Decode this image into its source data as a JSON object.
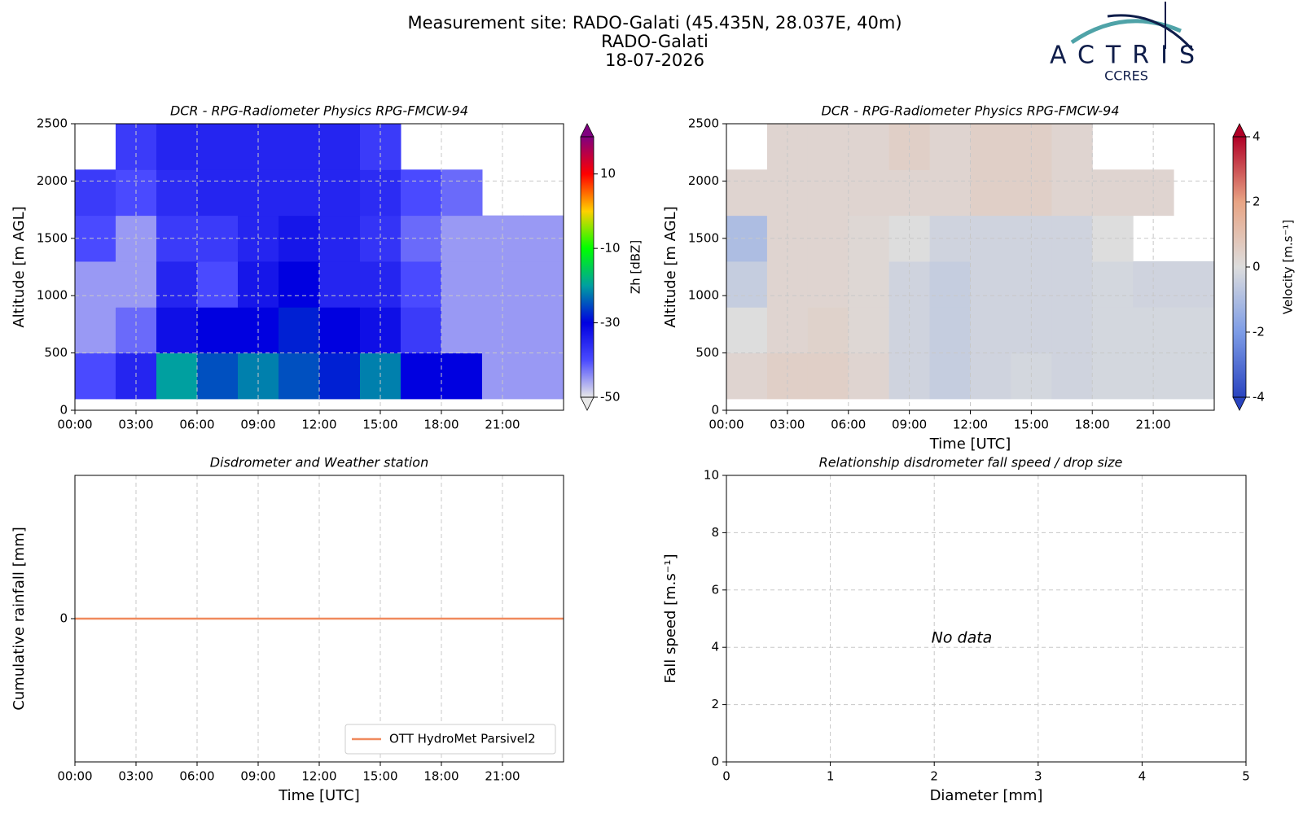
{
  "header": {
    "title": [
      "Measurement site: RADO-Galati (45.435N, 28.037E, 40m)",
      "RADO-Galati",
      "18-07-2026"
    ],
    "logo": "ACTRIS",
    "logo_subtitle": "CCRES"
  },
  "chart_data": [
    {
      "type": "heatmap",
      "title": "DCR - RPG-Radiometer Physics RPG-FMCW-94",
      "y_label": "Altitude [m AGL]",
      "colorbar_label": "Zh [dBZ]",
      "x_edges": [
        0,
        2,
        4,
        6,
        8,
        10,
        12,
        14,
        16,
        18,
        20,
        22,
        24
      ],
      "y_edges": [
        100,
        500,
        900,
        1300,
        1700,
        2100,
        2500
      ],
      "z": [
        [
          -40,
          -35,
          -20,
          -25,
          -22,
          -25,
          -28,
          -22,
          -30,
          -30,
          -45,
          -45
        ],
        [
          -45,
          -42,
          -32,
          -30,
          -30,
          -28,
          -30,
          -32,
          -38,
          -45,
          -45,
          -45
        ],
        [
          -45,
          -45,
          -35,
          -40,
          -33,
          -30,
          -35,
          -35,
          -40,
          -45,
          -45,
          -45
        ],
        [
          -40,
          -45,
          -38,
          -38,
          -35,
          -33,
          -35,
          -37,
          -42,
          -45,
          -45,
          -45
        ],
        [
          -38,
          -40,
          -36,
          -35,
          -35,
          -35,
          -35,
          -36,
          -40,
          -42,
          null,
          null
        ],
        [
          null,
          -38,
          -35,
          -35,
          -35,
          -35,
          -35,
          -38,
          null,
          null,
          null,
          null
        ]
      ],
      "clim": [
        -50,
        20
      ],
      "cticks": [
        -50,
        -30,
        -10,
        10
      ],
      "colormap": [
        "#e8e8e8",
        "#4a4aff",
        "#0000e0",
        "#00a0a0",
        "#00ff00",
        "#ffd000",
        "#ff0000",
        "#800080"
      ],
      "xlim": [
        0,
        24
      ],
      "ylim": [
        0,
        2500
      ],
      "xticks": [
        {
          "value": 0,
          "label": "00:00"
        },
        {
          "value": 3,
          "label": "03:00"
        },
        {
          "value": 6,
          "label": "06:00"
        },
        {
          "value": 9,
          "label": "09:00"
        },
        {
          "value": 12,
          "label": "12:00"
        },
        {
          "value": 15,
          "label": "15:00"
        },
        {
          "value": 18,
          "label": "18:00"
        },
        {
          "value": 21,
          "label": "21:00"
        }
      ],
      "yticks": [
        0,
        500,
        1000,
        1500,
        2000,
        2500
      ],
      "grid": true
    },
    {
      "type": "heatmap",
      "title": "DCR - RPG-Radiometer Physics RPG-FMCW-94",
      "y_label": "Altitude [m AGL]",
      "x_label": "Time [UTC]",
      "colorbar_label": "Velocity [m.s⁻¹]",
      "x_edges": [
        0,
        2,
        4,
        6,
        8,
        10,
        12,
        14,
        16,
        18,
        20,
        22,
        24
      ],
      "y_edges": [
        100,
        500,
        900,
        1300,
        1700,
        2100,
        2500
      ],
      "z": [
        [
          0.3,
          0.5,
          0.5,
          0.3,
          -0.3,
          -0.5,
          -0.3,
          -0.2,
          -0.3,
          -0.2,
          -0.2,
          -0.2
        ],
        [
          0,
          0.3,
          0.4,
          0.2,
          -0.3,
          -0.5,
          -0.3,
          -0.3,
          -0.3,
          -0.2,
          -0.2,
          -0.2
        ],
        [
          -0.5,
          0.3,
          0.3,
          0.2,
          -0.3,
          -0.5,
          -0.3,
          -0.3,
          -0.3,
          -0.2,
          -0.3,
          -0.3
        ],
        [
          -1,
          0.3,
          0.3,
          0.2,
          0,
          -0.3,
          -0.3,
          -0.3,
          -0.3,
          0,
          null,
          null
        ],
        [
          0.3,
          0.3,
          0.3,
          0.3,
          0.3,
          0.3,
          0.5,
          0.5,
          0.3,
          0.3,
          0.3,
          null
        ],
        [
          null,
          0.3,
          0.3,
          0.3,
          0.5,
          0.3,
          0.5,
          0.5,
          0.3,
          null,
          null,
          null
        ]
      ],
      "clim": [
        -4,
        4
      ],
      "cticks": [
        -4,
        -2,
        0,
        2,
        4
      ],
      "colormap": [
        "#2a44c0",
        "#7d9ce6",
        "#dddddd",
        "#e8a484",
        "#b00026"
      ],
      "xlim": [
        0,
        24
      ],
      "ylim": [
        0,
        2500
      ],
      "xticks": [
        {
          "value": 0,
          "label": "00:00"
        },
        {
          "value": 3,
          "label": "03:00"
        },
        {
          "value": 6,
          "label": "06:00"
        },
        {
          "value": 9,
          "label": "09:00"
        },
        {
          "value": 12,
          "label": "12:00"
        },
        {
          "value": 15,
          "label": "15:00"
        },
        {
          "value": 18,
          "label": "18:00"
        },
        {
          "value": 21,
          "label": "21:00"
        }
      ],
      "yticks": [
        0,
        500,
        1000,
        1500,
        2000,
        2500
      ],
      "grid": true
    },
    {
      "type": "line",
      "title": "Disdrometer and Weather station",
      "y_label": "Cumulative rainfall [mm]",
      "x_label": "Time [UTC]",
      "x": [
        0,
        24
      ],
      "series": [
        {
          "name": "OTT HydroMet Parsivel2",
          "color": "#f08a5d",
          "values": [
            0,
            0
          ]
        }
      ],
      "xlim": [
        0,
        24
      ],
      "ylim": [
        -1,
        1
      ],
      "xticks": [
        {
          "value": 0,
          "label": "00:00"
        },
        {
          "value": 3,
          "label": "03:00"
        },
        {
          "value": 6,
          "label": "06:00"
        },
        {
          "value": 9,
          "label": "09:00"
        },
        {
          "value": 12,
          "label": "12:00"
        },
        {
          "value": 15,
          "label": "15:00"
        },
        {
          "value": 18,
          "label": "18:00"
        },
        {
          "value": 21,
          "label": "21:00"
        }
      ],
      "yticks": [
        0
      ],
      "grid": true,
      "legend": "lower right"
    },
    {
      "type": "scatter",
      "title": "Relationship disdrometer fall speed / drop size",
      "y_label": "Fall speed [m.s⁻¹]",
      "x_label": "Diameter [mm]",
      "annotation": "No data",
      "xlim": [
        0,
        5
      ],
      "ylim": [
        0,
        10
      ],
      "xticks": [
        0,
        1,
        2,
        3,
        4,
        5
      ],
      "yticks": [
        0,
        2,
        4,
        6,
        8,
        10
      ],
      "grid": true
    }
  ]
}
